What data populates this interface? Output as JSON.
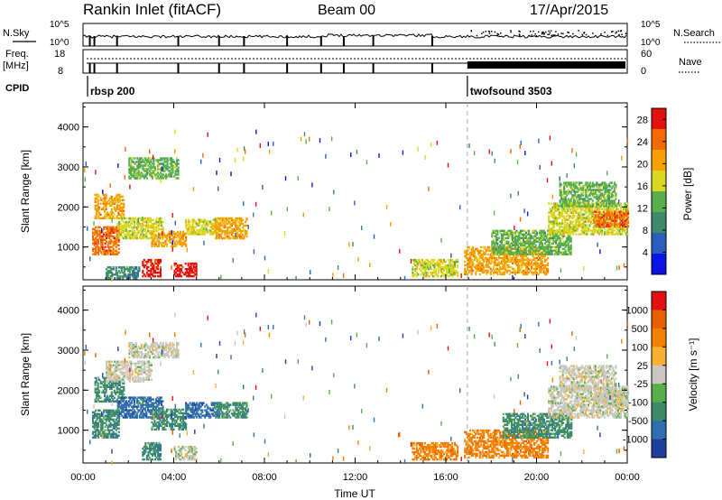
{
  "header": {
    "station": "Rankin Inlet (fitACF)",
    "beam": "Beam 00",
    "date": "17/Apr/2015"
  },
  "top_panels": {
    "nsky_label": "N.Sky",
    "nsearch_label": "N.Search",
    "nsky_ticks": [
      "10^5",
      "10^0"
    ],
    "nsearch_ticks": [
      "10^5",
      "10^0"
    ],
    "freq_label_1": "Freq.",
    "freq_label_2": "[MHz]",
    "freq_ticks": [
      "18",
      "8"
    ],
    "nave_label": "Nave",
    "nave_ticks": [
      "60",
      "0"
    ],
    "cpid_label": "CPID",
    "cpid_segments": [
      {
        "name": "rbsp 200",
        "start_hour": 0.2,
        "end_hour": 16.95
      },
      {
        "name": "twofsound 3503",
        "start_hour": 16.95,
        "end_hour": 24
      }
    ]
  },
  "chart_data": [
    {
      "type": "heatmap",
      "quantity": "Power",
      "ylabel": "Slant Range [km]",
      "xlabel": "Time UT",
      "xlim": [
        0,
        24
      ],
      "ylim": [
        180,
        4600
      ],
      "y_ticks": [
        "1000",
        "2000",
        "3000",
        "4000"
      ],
      "x_ticks": [
        "00:00",
        "04:00",
        "08:00",
        "12:00",
        "16:00",
        "20:00",
        "00:00"
      ],
      "colorbar_label": "Power [dB]",
      "colorbar_ticks": [
        "4",
        "8",
        "12",
        "16",
        "20",
        "24",
        "28"
      ],
      "colorbar_range": [
        0,
        30
      ],
      "colors": [
        "#0a14e6",
        "#2a5fc0",
        "#3f8a6a",
        "#59b04a",
        "#d8d820",
        "#f7a000",
        "#f36a00",
        "#e31010"
      ],
      "regions": [
        {
          "t0": 0.4,
          "t1": 1.6,
          "r0": 800,
          "r1": 1500,
          "level": 6
        },
        {
          "t0": 0.5,
          "t1": 1.8,
          "r0": 1700,
          "r1": 2300,
          "level": 5
        },
        {
          "t0": 1.5,
          "t1": 3.5,
          "r0": 1200,
          "r1": 1700,
          "level": 4
        },
        {
          "t0": 2.0,
          "t1": 4.2,
          "r0": 2700,
          "r1": 3200,
          "level": 3
        },
        {
          "t0": 3.0,
          "t1": 4.5,
          "r0": 1000,
          "r1": 1400,
          "level": 5
        },
        {
          "t0": 4.5,
          "t1": 6.0,
          "r0": 1300,
          "r1": 1700,
          "level": 4
        },
        {
          "t0": 5.8,
          "t1": 7.2,
          "r0": 1200,
          "r1": 1700,
          "level": 5
        },
        {
          "t0": 2.6,
          "t1": 3.4,
          "r0": 250,
          "r1": 700,
          "level": 7
        },
        {
          "t0": 4.0,
          "t1": 5.0,
          "r0": 250,
          "r1": 600,
          "level": 7
        },
        {
          "t0": 1.0,
          "t1": 2.5,
          "r0": 200,
          "r1": 500,
          "level": 2
        },
        {
          "t0": 14.5,
          "t1": 16.5,
          "r0": 250,
          "r1": 700,
          "level": 4
        },
        {
          "t0": 16.8,
          "t1": 20.5,
          "r0": 300,
          "r1": 1000,
          "level": 5
        },
        {
          "t0": 18.0,
          "t1": 21.5,
          "r0": 800,
          "r1": 1400,
          "level": 3
        },
        {
          "t0": 20.5,
          "t1": 24.0,
          "r0": 1300,
          "r1": 2100,
          "level": 4
        },
        {
          "t0": 21.0,
          "t1": 23.5,
          "r0": 2000,
          "r1": 2600,
          "level": 3
        },
        {
          "t0": 22.5,
          "t1": 24.0,
          "r0": 1500,
          "r1": 1900,
          "level": 6
        }
      ]
    },
    {
      "type": "heatmap",
      "quantity": "Velocity",
      "ylabel": "Slant Range [km]",
      "xlabel": "Time UT",
      "xlim": [
        0,
        24
      ],
      "ylim": [
        180,
        4600
      ],
      "y_ticks": [
        "1000",
        "2000",
        "3000",
        "4000"
      ],
      "x_ticks": [
        "00:00",
        "04:00",
        "08:00",
        "12:00",
        "16:00",
        "20:00",
        "00:00"
      ],
      "colorbar_label": "Velocity [m s⁻¹]",
      "colorbar_ticks": [
        "1000",
        "500",
        "100",
        "25",
        "-25",
        "-100",
        "-500",
        "-1000"
      ],
      "colorbar_range": [
        -1200,
        1200
      ],
      "colors": [
        "#1f3fa0",
        "#2f6fb0",
        "#3f8a6a",
        "#59b04a",
        "#c8c8c0",
        "#f7b030",
        "#f38000",
        "#e86000",
        "#e31010"
      ],
      "regions": [
        {
          "t0": 0.4,
          "t1": 1.6,
          "r0": 800,
          "r1": 1500,
          "level": 2
        },
        {
          "t0": 0.5,
          "t1": 1.8,
          "r0": 1700,
          "r1": 2300,
          "level": 2
        },
        {
          "t0": 1.5,
          "t1": 3.5,
          "r0": 1300,
          "r1": 1800,
          "level": 1
        },
        {
          "t0": 1.0,
          "t1": 3.0,
          "r0": 2200,
          "r1": 2700,
          "level": 4
        },
        {
          "t0": 2.0,
          "t1": 4.2,
          "r0": 2800,
          "r1": 3200,
          "level": 4
        },
        {
          "t0": 3.0,
          "t1": 4.5,
          "r0": 1000,
          "r1": 1500,
          "level": 2
        },
        {
          "t0": 4.5,
          "t1": 6.0,
          "r0": 1300,
          "r1": 1700,
          "level": 1
        },
        {
          "t0": 5.8,
          "t1": 7.2,
          "r0": 1300,
          "r1": 1700,
          "level": 2
        },
        {
          "t0": 2.6,
          "t1": 3.4,
          "r0": 250,
          "r1": 700,
          "level": 2
        },
        {
          "t0": 4.0,
          "t1": 5.0,
          "r0": 250,
          "r1": 600,
          "level": 4
        },
        {
          "t0": 14.5,
          "t1": 16.5,
          "r0": 250,
          "r1": 700,
          "level": 6
        },
        {
          "t0": 16.8,
          "t1": 20.5,
          "r0": 300,
          "r1": 1000,
          "level": 6
        },
        {
          "t0": 18.5,
          "t1": 21.5,
          "r0": 800,
          "r1": 1400,
          "level": 2
        },
        {
          "t0": 20.5,
          "t1": 24.0,
          "r0": 1300,
          "r1": 2100,
          "level": 4
        },
        {
          "t0": 21.0,
          "t1": 23.5,
          "r0": 2000,
          "r1": 2600,
          "level": 4
        },
        {
          "t0": 22.5,
          "t1": 24.0,
          "r0": 1600,
          "r1": 2000,
          "level": 4
        }
      ]
    }
  ]
}
